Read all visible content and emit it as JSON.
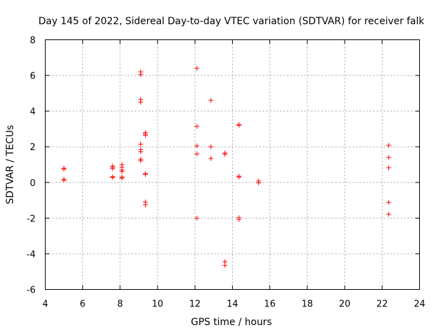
{
  "chart_data": {
    "type": "scatter",
    "title": "Day 145 of 2022, Sidereal Day-to-day VTEC variation (SDTVAR) for receiver falk",
    "xlabel": "GPS time / hours",
    "ylabel": "SDTVAR / TECUs",
    "xlim": [
      4,
      24
    ],
    "ylim": [
      -6,
      8
    ],
    "xticks": [
      4,
      6,
      8,
      10,
      12,
      14,
      16,
      18,
      20,
      22,
      24
    ],
    "yticks": [
      -6,
      -4,
      -2,
      0,
      2,
      4,
      6,
      8
    ],
    "grid": true,
    "marker": "+",
    "marker_color": "#ff0000",
    "series": [
      {
        "name": "SDTVAR",
        "points": [
          [
            5.0,
            0.8
          ],
          [
            5.0,
            0.75
          ],
          [
            5.0,
            0.18
          ],
          [
            5.0,
            0.12
          ],
          [
            7.6,
            0.92
          ],
          [
            7.6,
            0.85
          ],
          [
            7.6,
            0.78
          ],
          [
            7.6,
            0.32
          ],
          [
            7.6,
            0.28
          ],
          [
            8.1,
            1.0
          ],
          [
            8.1,
            0.85
          ],
          [
            8.1,
            0.7
          ],
          [
            8.1,
            0.62
          ],
          [
            8.1,
            0.3
          ],
          [
            8.1,
            0.25
          ],
          [
            9.1,
            6.2
          ],
          [
            9.1,
            6.05
          ],
          [
            9.1,
            4.65
          ],
          [
            9.1,
            4.5
          ],
          [
            9.1,
            2.15
          ],
          [
            9.1,
            1.85
          ],
          [
            9.1,
            1.72
          ],
          [
            9.1,
            1.3
          ],
          [
            9.1,
            1.22
          ],
          [
            9.35,
            2.8
          ],
          [
            9.35,
            2.72
          ],
          [
            9.35,
            2.65
          ],
          [
            9.35,
            0.5
          ],
          [
            9.35,
            0.45
          ],
          [
            9.35,
            -1.1
          ],
          [
            9.35,
            -1.25
          ],
          [
            12.1,
            6.4
          ],
          [
            12.1,
            3.15
          ],
          [
            12.1,
            2.05
          ],
          [
            12.1,
            1.6
          ],
          [
            12.1,
            -2.0
          ],
          [
            12.85,
            4.6
          ],
          [
            12.85,
            2.0
          ],
          [
            12.85,
            1.35
          ],
          [
            13.6,
            1.65
          ],
          [
            13.6,
            1.58
          ],
          [
            13.6,
            -4.45
          ],
          [
            13.6,
            -4.65
          ],
          [
            14.35,
            3.25
          ],
          [
            14.35,
            3.2
          ],
          [
            14.35,
            0.35
          ],
          [
            14.35,
            0.3
          ],
          [
            14.35,
            -1.98
          ],
          [
            14.35,
            -2.08
          ],
          [
            15.4,
            0.08
          ],
          [
            15.4,
            -0.02
          ],
          [
            22.35,
            2.08
          ],
          [
            22.35,
            1.4
          ],
          [
            22.35,
            0.82
          ],
          [
            22.35,
            -1.12
          ],
          [
            22.35,
            -1.78
          ]
        ]
      }
    ]
  }
}
